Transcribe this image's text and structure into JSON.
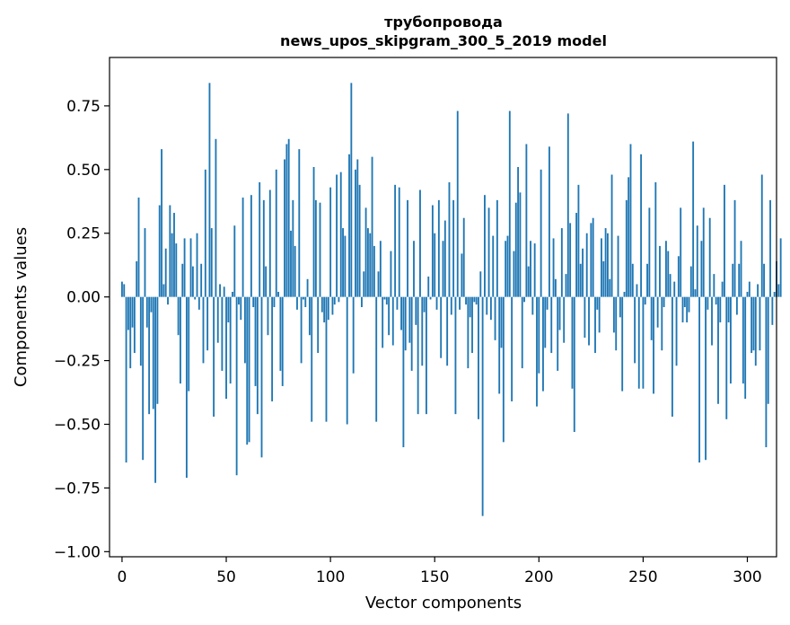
{
  "chart_data": {
    "type": "bar",
    "title_line1": "трубопровода",
    "title_line2": "news_upos_skipgram_300_5_2019 model",
    "xlabel": "Vector components",
    "ylabel": "Components values",
    "xlim": [
      -6,
      314
    ],
    "ylim": [
      -1.02,
      0.94
    ],
    "x_ticks": [
      0,
      50,
      100,
      150,
      200,
      250,
      300
    ],
    "x_tick_labels": [
      "0",
      "50",
      "100",
      "150",
      "200",
      "250",
      "300"
    ],
    "y_ticks": [
      0.75,
      0.5,
      0.25,
      0.0,
      -0.25,
      -0.5,
      -0.75,
      -1.0
    ],
    "y_tick_labels": [
      "0.75",
      "0.50",
      "0.25",
      "0.00",
      "−0.25",
      "−0.50",
      "−0.75",
      "−1.00"
    ],
    "bar_color": "#1f77b4",
    "grid": false,
    "values": [
      0.06,
      0.05,
      -0.65,
      -0.13,
      -0.28,
      -0.12,
      -0.22,
      0.14,
      0.39,
      -0.27,
      -0.64,
      0.27,
      -0.12,
      -0.46,
      -0.06,
      -0.44,
      -0.73,
      -0.42,
      0.36,
      0.58,
      0.05,
      0.19,
      -0.03,
      0.36,
      0.25,
      0.33,
      0.21,
      -0.15,
      -0.34,
      0.13,
      0.23,
      -0.71,
      -0.37,
      0.23,
      0.12,
      -0.01,
      0.25,
      -0.05,
      0.13,
      -0.26,
      0.5,
      -0.21,
      0.84,
      0.27,
      -0.47,
      0.62,
      -0.18,
      0.05,
      -0.29,
      0.04,
      -0.4,
      -0.1,
      -0.34,
      0.02,
      0.28,
      -0.7,
      -0.03,
      -0.09,
      0.39,
      -0.26,
      -0.58,
      -0.57,
      0.4,
      -0.04,
      -0.35,
      -0.46,
      0.45,
      -0.63,
      0.38,
      0.12,
      -0.15,
      0.42,
      -0.41,
      -0.04,
      0.5,
      0.02,
      -0.29,
      -0.35,
      0.54,
      0.6,
      0.62,
      0.26,
      0.38,
      0.2,
      -0.05,
      0.58,
      -0.26,
      -0.01,
      -0.04,
      0.07,
      -0.15,
      -0.49,
      0.51,
      0.38,
      -0.22,
      0.37,
      -0.06,
      -0.1,
      -0.49,
      -0.09,
      0.43,
      -0.07,
      -0.03,
      0.48,
      -0.02,
      0.49,
      0.27,
      0.24,
      -0.5,
      0.56,
      0.84,
      -0.3,
      0.5,
      0.54,
      0.44,
      -0.04,
      0.1,
      0.35,
      0.27,
      0.25,
      0.55,
      0.2,
      -0.49,
      0.1,
      0.22,
      -0.2,
      -0.01,
      -0.03,
      -0.15,
      0.18,
      -0.19,
      0.44,
      -0.05,
      0.43,
      -0.13,
      -0.59,
      -0.21,
      0.38,
      -0.18,
      -0.29,
      0.22,
      -0.11,
      -0.46,
      0.42,
      -0.27,
      -0.06,
      -0.46,
      0.08,
      -0.01,
      0.36,
      0.25,
      -0.05,
      0.38,
      -0.24,
      0.22,
      0.3,
      -0.27,
      0.45,
      -0.07,
      0.38,
      -0.46,
      0.73,
      -0.05,
      0.17,
      0.31,
      -0.03,
      -0.28,
      -0.08,
      -0.22,
      -0.02,
      -0.03,
      -0.48,
      0.1,
      -0.86,
      0.4,
      -0.07,
      0.35,
      -0.09,
      0.24,
      -0.17,
      0.38,
      -0.38,
      -0.2,
      -0.57,
      0.22,
      0.24,
      0.73,
      -0.41,
      0.18,
      0.37,
      0.51,
      0.41,
      -0.28,
      -0.02,
      0.6,
      0.12,
      0.22,
      -0.07,
      0.21,
      -0.43,
      -0.3,
      0.5,
      -0.37,
      -0.2,
      -0.05,
      0.59,
      -0.22,
      0.23,
      0.07,
      -0.29,
      -0.13,
      0.27,
      -0.18,
      0.09,
      0.72,
      0.29,
      -0.36,
      -0.53,
      0.33,
      0.44,
      0.13,
      0.19,
      -0.16,
      0.25,
      -0.19,
      0.29,
      0.31,
      -0.22,
      -0.05,
      -0.14,
      0.23,
      0.14,
      0.27,
      0.25,
      0.07,
      0.48,
      -0.14,
      -0.21,
      0.24,
      -0.08,
      -0.37,
      0.02,
      0.38,
      0.47,
      0.6,
      0.13,
      -0.26,
      0.05,
      -0.36,
      0.56,
      -0.36,
      -0.03,
      0.13,
      0.35,
      -0.17,
      -0.38,
      0.45,
      -0.12,
      0.2,
      -0.21,
      -0.04,
      0.22,
      0.18,
      0.09,
      -0.47,
      0.06,
      -0.27,
      0.16,
      0.35,
      -0.1,
      -0.04,
      -0.1,
      -0.06,
      0.12,
      0.61,
      0.03,
      0.28,
      -0.65,
      0.22,
      0.35,
      -0.64,
      -0.05,
      0.31,
      -0.19,
      0.09,
      -0.03,
      -0.42,
      -0.1,
      0.06,
      0.44,
      -0.48,
      -0.1,
      -0.34,
      0.13,
      0.38,
      -0.07,
      0.13,
      0.22,
      -0.34,
      -0.4,
      0.02,
      0.06,
      -0.22,
      -0.21,
      -0.27,
      0.05,
      -0.21,
      0.48,
      0.13,
      -0.59,
      -0.42,
      0.38,
      -0.11,
      0.02,
      0.14,
      0.05,
      0.23
    ]
  }
}
